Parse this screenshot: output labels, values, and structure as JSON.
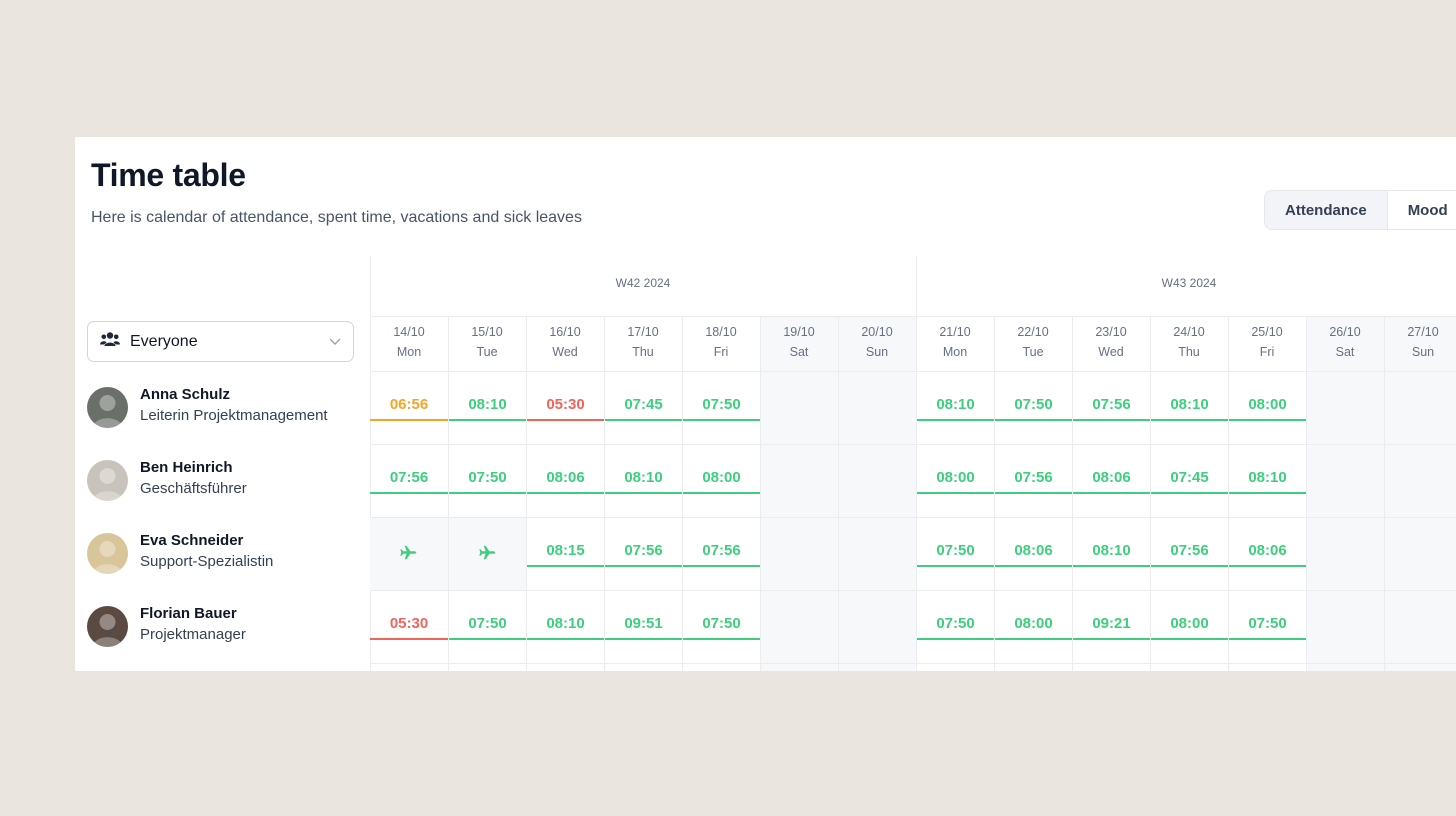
{
  "header": {
    "title": "Time table",
    "subtitle": "Here is calendar of attendance, spent time, vacations and sick leaves"
  },
  "view_toggle": {
    "options": [
      "Attendance",
      "Mood"
    ],
    "selected": "Attendance"
  },
  "filter": {
    "value": "Everyone",
    "icon": "users-icon"
  },
  "colors": {
    "ok": "#3ecf7e",
    "warn": "#f5a524",
    "bad": "#f0645a",
    "weekend": "#f7f8fa"
  },
  "weeks": [
    {
      "label": "W42 2024"
    },
    {
      "label": "W43 2024"
    }
  ],
  "days": [
    {
      "date": "14/10",
      "dow": "Mon",
      "weekend": false
    },
    {
      "date": "15/10",
      "dow": "Tue",
      "weekend": false
    },
    {
      "date": "16/10",
      "dow": "Wed",
      "weekend": false
    },
    {
      "date": "17/10",
      "dow": "Thu",
      "weekend": false
    },
    {
      "date": "18/10",
      "dow": "Fri",
      "weekend": false
    },
    {
      "date": "19/10",
      "dow": "Sat",
      "weekend": true
    },
    {
      "date": "20/10",
      "dow": "Sun",
      "weekend": true
    },
    {
      "date": "21/10",
      "dow": "Mon",
      "weekend": false
    },
    {
      "date": "22/10",
      "dow": "Tue",
      "weekend": false
    },
    {
      "date": "23/10",
      "dow": "Wed",
      "weekend": false
    },
    {
      "date": "24/10",
      "dow": "Thu",
      "weekend": false
    },
    {
      "date": "25/10",
      "dow": "Fri",
      "weekend": false
    },
    {
      "date": "26/10",
      "dow": "Sat",
      "weekend": true
    },
    {
      "date": "27/10",
      "dow": "Sun",
      "weekend": true
    }
  ],
  "people": [
    {
      "name": "Anna Schulz",
      "role": "Leiterin Projektmanagement",
      "avatar_color": "#6b6f6a",
      "entries": [
        {
          "value": "06:56",
          "status": "warn"
        },
        {
          "value": "08:10",
          "status": "ok"
        },
        {
          "value": "05:30",
          "status": "bad"
        },
        {
          "value": "07:45",
          "status": "ok"
        },
        {
          "value": "07:50",
          "status": "ok"
        },
        null,
        null,
        {
          "value": "08:10",
          "status": "ok"
        },
        {
          "value": "07:50",
          "status": "ok"
        },
        {
          "value": "07:56",
          "status": "ok"
        },
        {
          "value": "08:10",
          "status": "ok"
        },
        {
          "value": "08:00",
          "status": "ok"
        },
        null,
        null
      ]
    },
    {
      "name": "Ben Heinrich",
      "role": "Geschäftsführer",
      "avatar_color": "#c9c3bb",
      "entries": [
        {
          "value": "07:56",
          "status": "ok"
        },
        {
          "value": "07:50",
          "status": "ok"
        },
        {
          "value": "08:06",
          "status": "ok"
        },
        {
          "value": "08:10",
          "status": "ok"
        },
        {
          "value": "08:00",
          "status": "ok"
        },
        null,
        null,
        {
          "value": "08:00",
          "status": "ok"
        },
        {
          "value": "07:56",
          "status": "ok"
        },
        {
          "value": "08:06",
          "status": "ok"
        },
        {
          "value": "07:45",
          "status": "ok"
        },
        {
          "value": "08:10",
          "status": "ok"
        },
        null,
        null
      ]
    },
    {
      "name": "Eva Schneider",
      "role": "Support-Spezialistin",
      "avatar_color": "#d8c59a",
      "entries": [
        {
          "status": "vacation",
          "icon": "plane-icon"
        },
        {
          "status": "vacation",
          "icon": "plane-icon"
        },
        {
          "value": "08:15",
          "status": "ok"
        },
        {
          "value": "07:56",
          "status": "ok"
        },
        {
          "value": "07:56",
          "status": "ok"
        },
        null,
        null,
        {
          "value": "07:50",
          "status": "ok"
        },
        {
          "value": "08:06",
          "status": "ok"
        },
        {
          "value": "08:10",
          "status": "ok"
        },
        {
          "value": "07:56",
          "status": "ok"
        },
        {
          "value": "08:06",
          "status": "ok"
        },
        null,
        null
      ]
    },
    {
      "name": "Florian Bauer",
      "role": "Projektmanager",
      "avatar_color": "#5b4a42",
      "entries": [
        {
          "value": "05:30",
          "status": "bad"
        },
        {
          "value": "07:50",
          "status": "ok"
        },
        {
          "value": "08:10",
          "status": "ok"
        },
        {
          "value": "09:51",
          "status": "ok"
        },
        {
          "value": "07:50",
          "status": "ok"
        },
        null,
        null,
        {
          "value": "07:50",
          "status": "ok"
        },
        {
          "value": "08:00",
          "status": "ok"
        },
        {
          "value": "09:21",
          "status": "ok"
        },
        {
          "value": "08:00",
          "status": "ok"
        },
        {
          "value": "07:50",
          "status": "ok"
        },
        null,
        null
      ]
    }
  ]
}
